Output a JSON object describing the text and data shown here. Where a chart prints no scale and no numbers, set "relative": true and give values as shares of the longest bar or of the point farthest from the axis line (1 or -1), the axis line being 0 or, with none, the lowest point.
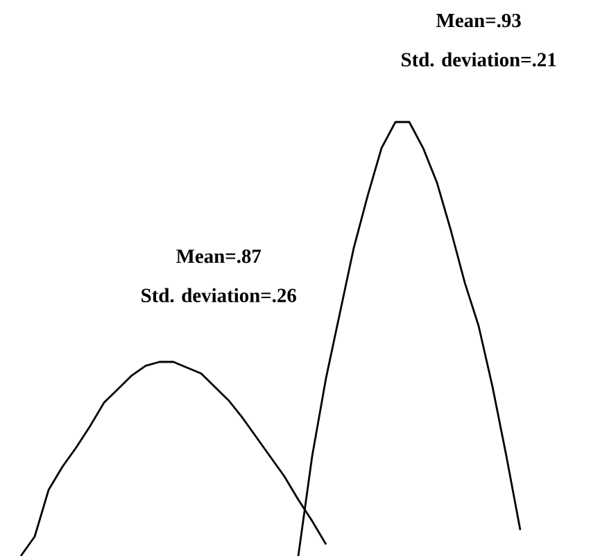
{
  "chart_data": [
    {
      "type": "line",
      "relative": true,
      "categories": [
        null,
        null,
        null,
        null,
        null,
        null,
        null,
        null,
        null,
        null,
        null,
        null,
        null,
        null,
        null,
        null,
        null,
        null,
        null,
        null,
        null,
        null,
        null
      ],
      "series": [
        {
          "color": "#000000",
          "values": [
            0,
            0.1,
            0.34,
            0.46,
            0.56,
            0.67,
            0.79,
            0.86,
            0.93,
            0.98,
            1,
            1,
            0.97,
            0.94,
            0.87,
            0.8,
            0.71,
            0.61,
            0.51,
            0.41,
            0.29,
            0.18,
            0.06
          ]
        }
      ],
      "annotations": [
        "Mean=.87",
        "Std. deviation=.26"
      ]
    },
    {
      "type": "line",
      "relative": true,
      "categories": [
        null,
        null,
        null,
        null,
        null,
        null,
        null,
        null,
        null,
        null,
        null,
        null,
        null,
        null,
        null,
        null,
        null
      ],
      "series": [
        {
          "color": "#000000",
          "values": [
            0,
            0.23,
            0.41,
            0.56,
            0.71,
            0.83,
            0.94,
            1,
            1,
            0.94,
            0.86,
            0.75,
            0.63,
            0.53,
            0.39,
            0.23,
            0.06
          ]
        }
      ],
      "annotations": [
        "Mean=.93",
        "Std. deviation=.21"
      ]
    }
  ]
}
